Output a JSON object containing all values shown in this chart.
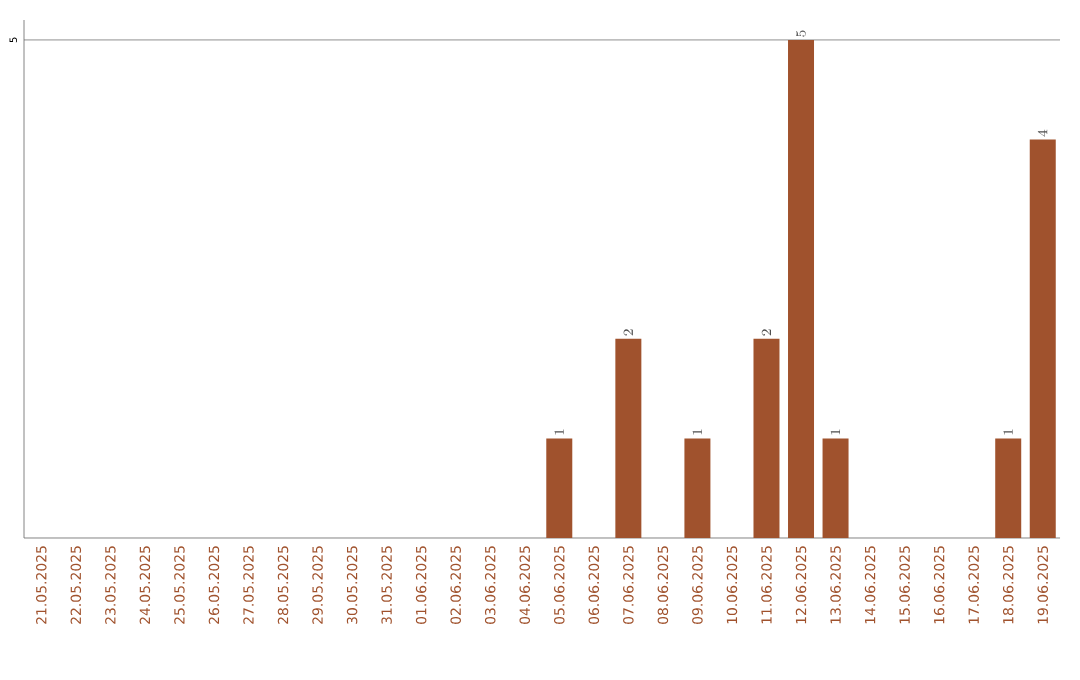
{
  "chart_data": {
    "type": "bar",
    "categories": [
      "21.05.2025",
      "22.05.2025",
      "23.05.2025",
      "24.05.2025",
      "25.05.2025",
      "26.05.2025",
      "27.05.2025",
      "28.05.2025",
      "29.05.2025",
      "30.05.2025",
      "31.05.2025",
      "01.06.2025",
      "02.06.2025",
      "03.06.2025",
      "04.06.2025",
      "05.06.2025",
      "06.06.2025",
      "07.06.2025",
      "08.06.2025",
      "09.06.2025",
      "10.06.2025",
      "11.06.2025",
      "12.06.2025",
      "13.06.2025",
      "14.06.2025",
      "15.06.2025",
      "16.06.2025",
      "17.06.2025",
      "18.06.2025",
      "19.06.2025"
    ],
    "values": [
      null,
      null,
      null,
      null,
      null,
      null,
      null,
      null,
      null,
      null,
      null,
      null,
      null,
      null,
      null,
      1,
      null,
      2,
      null,
      1,
      null,
      2,
      5,
      1,
      null,
      null,
      null,
      null,
      1,
      4
    ],
    "color": "#a0522d",
    "ylim": [
      0,
      5.2
    ],
    "yticks": [
      5
    ],
    "grid": "y",
    "data_labels": true
  }
}
